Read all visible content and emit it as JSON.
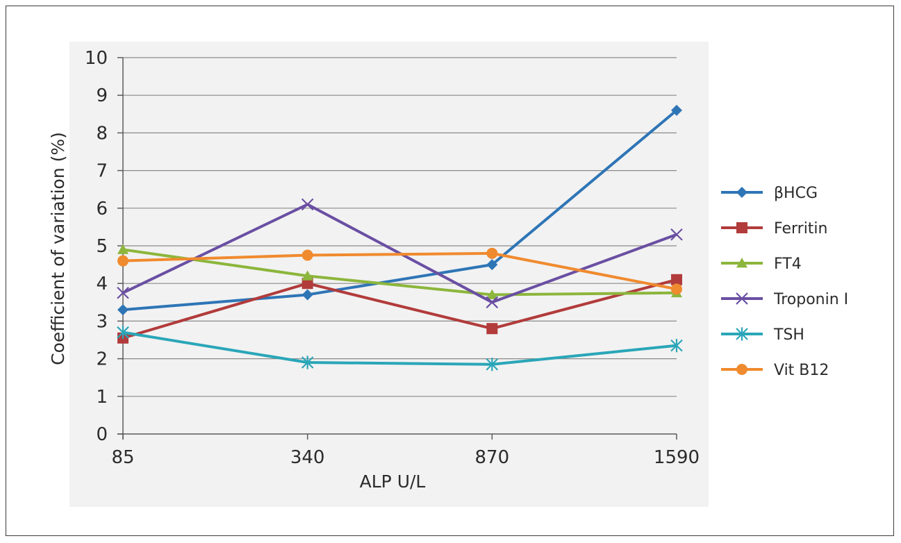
{
  "chart_data": {
    "type": "line",
    "title": "",
    "xlabel": "ALP U/L",
    "ylabel": "Coefficient of variation (%)",
    "categories": [
      "85",
      "340",
      "870",
      "1590"
    ],
    "ylim": [
      0,
      10
    ],
    "yticks": [
      "0",
      "1",
      "2",
      "3",
      "4",
      "5",
      "6",
      "7",
      "8",
      "9",
      "10"
    ],
    "grid": true,
    "legend_position": "right",
    "series": [
      {
        "name": "βHCG",
        "values": [
          3.3,
          3.7,
          4.5,
          8.6
        ],
        "color": "#2e75b6",
        "marker": "diamond"
      },
      {
        "name": "Ferritin",
        "values": [
          2.55,
          4.0,
          2.8,
          4.1
        ],
        "color": "#b23b3b",
        "marker": "square"
      },
      {
        "name": "FT4",
        "values": [
          4.9,
          4.2,
          3.7,
          3.75
        ],
        "color": "#8cb63c",
        "marker": "triangle"
      },
      {
        "name": "Troponin I",
        "values": [
          3.75,
          6.1,
          3.5,
          5.3
        ],
        "color": "#6a4fa3",
        "marker": "x"
      },
      {
        "name": "TSH",
        "values": [
          2.7,
          1.9,
          1.85,
          2.35
        ],
        "color": "#2aa6b8",
        "marker": "star"
      },
      {
        "name": "Vit B12",
        "values": [
          4.6,
          4.75,
          4.8,
          3.85
        ],
        "color": "#f08a2e",
        "marker": "circle"
      }
    ]
  }
}
